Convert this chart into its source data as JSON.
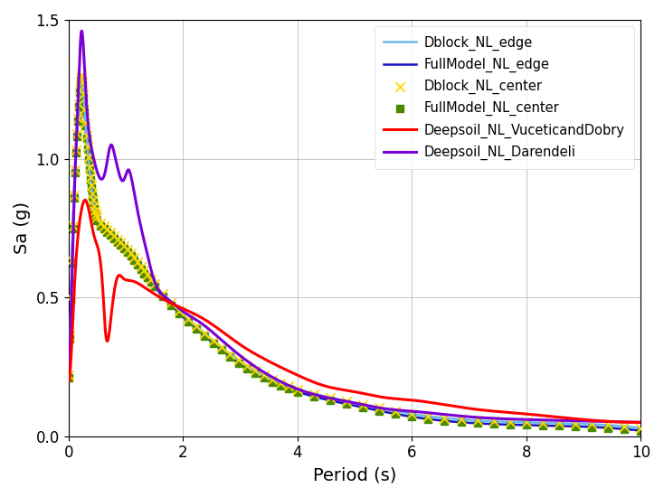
{
  "xlabel": "Period (s)",
  "ylabel": "Sa (g)",
  "xlim": [
    0,
    10
  ],
  "ylim": [
    0,
    1.5
  ],
  "xticks": [
    0,
    2,
    4,
    6,
    8,
    10
  ],
  "yticks": [
    0,
    0.5,
    1.0,
    1.5
  ],
  "series": {
    "Deepsoil_NL_VuceticandDobry": {
      "color": "#FF0000",
      "lw": 2.2,
      "zorder": 6
    },
    "Deepsoil_NL_Darendeli": {
      "color": "#7B00D4",
      "lw": 2.2,
      "zorder": 5
    },
    "Dblock_NL_edge": {
      "color": "#6CB8EA",
      "lw": 1.8,
      "zorder": 3
    },
    "Dblock_NL_center": {
      "color": "#FFD700",
      "marker": "x",
      "ms": 55,
      "lw": 1.4,
      "zorder": 4
    },
    "FullModel_NL_edge": {
      "color": "#1515C8",
      "lw": 1.8,
      "zorder": 2
    },
    "FullModel_NL_center": {
      "color": "#4A8A00",
      "marker": "s",
      "ms": 40,
      "lw": 1.0,
      "zorder": 2
    }
  },
  "figsize": [
    7.34,
    5.5
  ],
  "dpi": 100
}
